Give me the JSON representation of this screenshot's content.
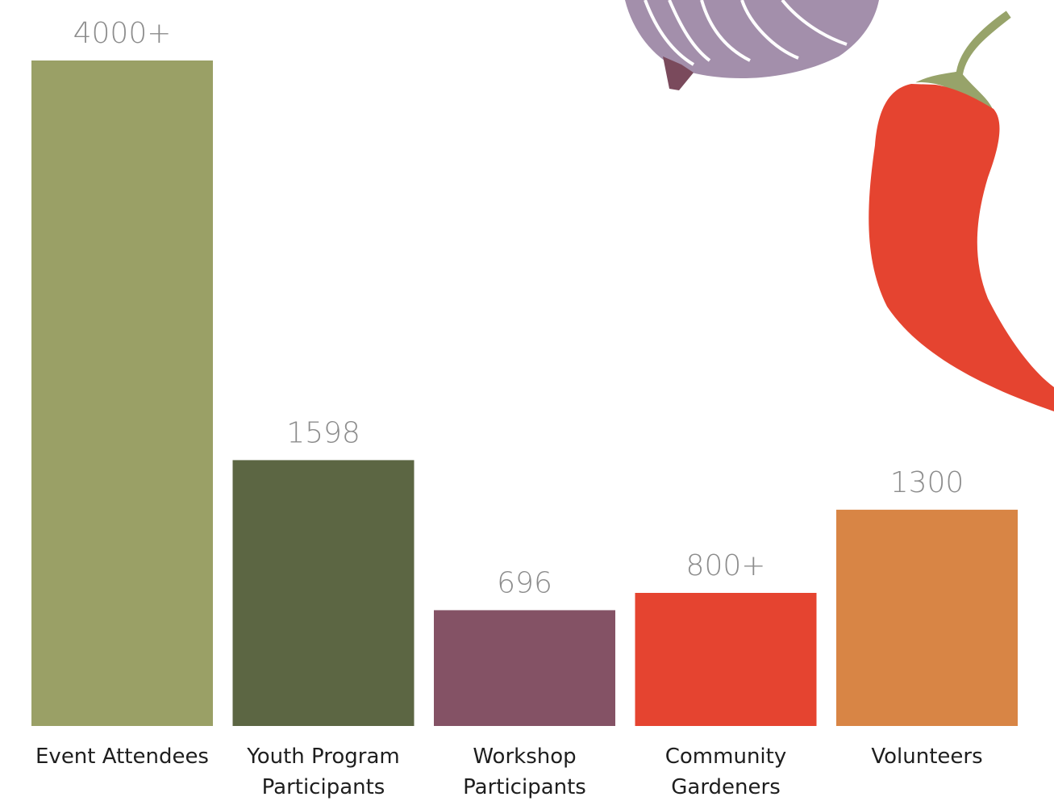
{
  "chart_data": {
    "type": "bar",
    "categories": [
      "Event Attendees",
      "Youth Program Participants",
      "Workshop Participants",
      "Community Gardeners",
      "Volunteers"
    ],
    "values": [
      4000,
      1598,
      696,
      800,
      1300
    ],
    "value_labels": [
      "4000+",
      "1598",
      "696",
      "800+",
      "1300"
    ],
    "colors": [
      "#9aa066",
      "#5c6643",
      "#845265",
      "#e54430",
      "#d88545"
    ],
    "ylim": [
      0,
      4000
    ]
  }
}
